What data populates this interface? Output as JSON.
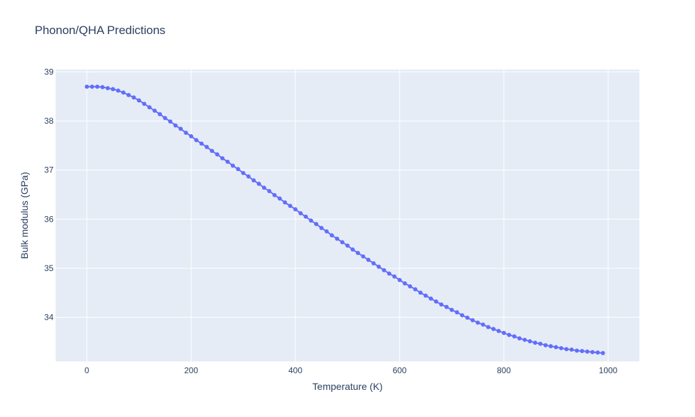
{
  "chart_data": {
    "type": "line",
    "title": "Phonon/QHA Predictions",
    "xlabel": "Temperature (K)",
    "ylabel": "Bulk modulus (GPa)",
    "xlim": [
      -60,
      1060
    ],
    "ylim": [
      33.1,
      39.05
    ],
    "x_ticks": [
      0,
      200,
      400,
      600,
      800,
      1000
    ],
    "y_ticks": [
      34,
      35,
      36,
      37,
      38,
      39
    ],
    "grid": true,
    "mode": "lines+markers",
    "series": [
      {
        "x": [
          0,
          10,
          20,
          30,
          40,
          50,
          60,
          70,
          80,
          90,
          100,
          110,
          120,
          130,
          140,
          150,
          160,
          170,
          180,
          190,
          200,
          210,
          220,
          230,
          240,
          250,
          260,
          270,
          280,
          290,
          300,
          310,
          320,
          330,
          340,
          350,
          360,
          370,
          380,
          390,
          400,
          410,
          420,
          430,
          440,
          450,
          460,
          470,
          480,
          490,
          500,
          510,
          520,
          530,
          540,
          550,
          560,
          570,
          580,
          590,
          600,
          610,
          620,
          630,
          640,
          650,
          660,
          670,
          680,
          690,
          700,
          710,
          720,
          730,
          740,
          750,
          760,
          770,
          780,
          790,
          800,
          810,
          820,
          830,
          840,
          850,
          860,
          870,
          880,
          890,
          900,
          910,
          920,
          930,
          940,
          950,
          960,
          970,
          980,
          990
        ],
        "y": [
          38.7,
          38.7,
          38.7,
          38.69,
          38.67,
          38.65,
          38.62,
          38.58,
          38.53,
          38.48,
          38.42,
          38.35,
          38.28,
          38.21,
          38.14,
          38.06,
          37.99,
          37.91,
          37.84,
          37.76,
          37.69,
          37.61,
          37.54,
          37.47,
          37.39,
          37.32,
          37.24,
          37.17,
          37.09,
          37.02,
          36.94,
          36.87,
          36.79,
          36.72,
          36.64,
          36.57,
          36.49,
          36.42,
          36.34,
          36.27,
          36.2,
          36.12,
          36.05,
          35.97,
          35.9,
          35.82,
          35.75,
          35.67,
          35.6,
          35.53,
          35.46,
          35.38,
          35.31,
          35.24,
          35.17,
          35.1,
          35.03,
          34.96,
          34.89,
          34.83,
          34.76,
          34.69,
          34.63,
          34.57,
          34.5,
          34.44,
          34.38,
          34.32,
          34.26,
          34.21,
          34.15,
          34.1,
          34.04,
          33.99,
          33.94,
          33.89,
          33.85,
          33.8,
          33.76,
          33.72,
          33.68,
          33.64,
          33.61,
          33.57,
          33.54,
          33.51,
          33.48,
          33.46,
          33.43,
          33.41,
          33.39,
          33.37,
          33.35,
          33.34,
          33.32,
          33.31,
          33.3,
          33.29,
          33.28,
          33.27
        ]
      }
    ],
    "colors": {
      "series": "#636efa",
      "plot_bg": "#e5ecf6",
      "grid": "#ffffff",
      "text": "#2a3f5f"
    }
  }
}
